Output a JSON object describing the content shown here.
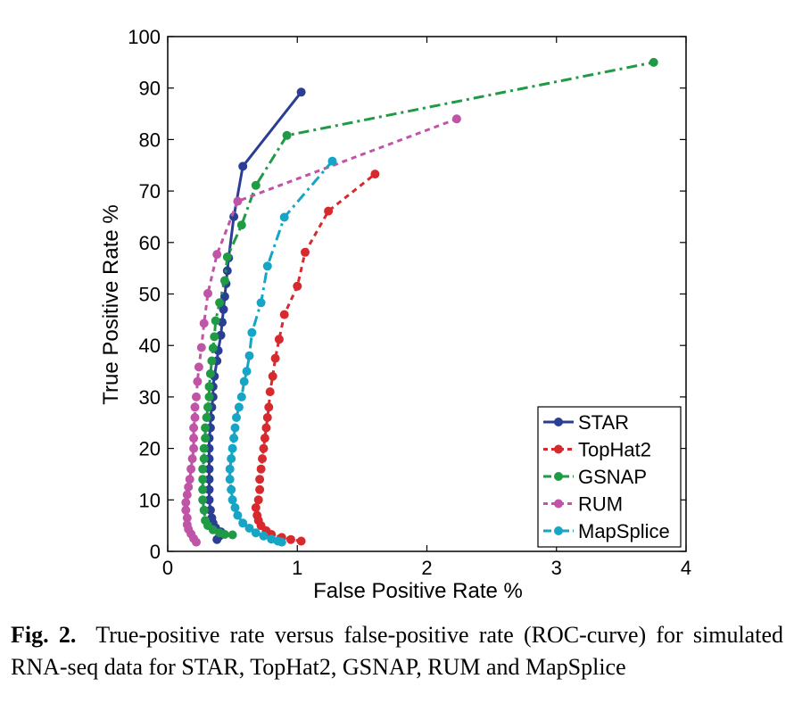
{
  "chart_data": {
    "type": "line",
    "xlabel": "False Positive Rate %",
    "ylabel": "True Positive Rate %",
    "xlim": [
      0,
      4
    ],
    "ylim": [
      0,
      100
    ],
    "xticks": [
      0,
      1,
      2,
      3,
      4
    ],
    "yticks": [
      0,
      10,
      20,
      30,
      40,
      50,
      60,
      70,
      80,
      90,
      100
    ],
    "grid": false,
    "legend_position": "bottom-right",
    "series": [
      {
        "name": "STAR",
        "color": "#2a3f93",
        "dash": "solid",
        "points": [
          [
            0.38,
            2.3
          ],
          [
            0.4,
            3.0
          ],
          [
            0.41,
            3.8
          ],
          [
            0.37,
            4.6
          ],
          [
            0.35,
            5.5
          ],
          [
            0.34,
            6.5
          ],
          [
            0.33,
            8
          ],
          [
            0.32,
            10
          ],
          [
            0.32,
            12
          ],
          [
            0.32,
            14
          ],
          [
            0.32,
            16
          ],
          [
            0.32,
            18
          ],
          [
            0.32,
            20
          ],
          [
            0.32,
            22
          ],
          [
            0.33,
            24
          ],
          [
            0.33,
            26
          ],
          [
            0.34,
            28
          ],
          [
            0.35,
            30
          ],
          [
            0.35,
            32
          ],
          [
            0.36,
            34
          ],
          [
            0.38,
            37
          ],
          [
            0.39,
            39
          ],
          [
            0.41,
            42
          ],
          [
            0.42,
            44.5
          ],
          [
            0.43,
            47
          ],
          [
            0.44,
            49.5
          ],
          [
            0.45,
            52
          ],
          [
            0.46,
            54.5
          ],
          [
            0.47,
            57
          ],
          [
            0.51,
            65
          ],
          [
            0.58,
            74.8
          ],
          [
            1.03,
            89.2
          ]
        ]
      },
      {
        "name": "TopHat2",
        "color": "#d62a2f",
        "dash": "dashed",
        "points": [
          [
            1.03,
            2.0
          ],
          [
            0.95,
            2.3
          ],
          [
            0.88,
            2.7
          ],
          [
            0.8,
            3.3
          ],
          [
            0.76,
            4.0
          ],
          [
            0.72,
            5.0
          ],
          [
            0.7,
            6.0
          ],
          [
            0.69,
            7.0
          ],
          [
            0.68,
            8.5
          ],
          [
            0.7,
            10
          ],
          [
            0.71,
            12
          ],
          [
            0.71,
            14
          ],
          [
            0.72,
            16
          ],
          [
            0.73,
            18
          ],
          [
            0.74,
            20
          ],
          [
            0.75,
            22
          ],
          [
            0.76,
            24
          ],
          [
            0.77,
            26
          ],
          [
            0.78,
            28
          ],
          [
            0.79,
            31
          ],
          [
            0.81,
            34
          ],
          [
            0.83,
            37.5
          ],
          [
            0.86,
            41.2
          ],
          [
            0.9,
            46
          ],
          [
            1.0,
            51.5
          ],
          [
            1.06,
            58.1
          ],
          [
            1.24,
            66.1
          ],
          [
            1.6,
            73.3
          ]
        ]
      },
      {
        "name": "GSNAP",
        "color": "#1f9a45",
        "dash": "dashdot",
        "points": [
          [
            0.5,
            3.2
          ],
          [
            0.44,
            3.3
          ],
          [
            0.4,
            3.6
          ],
          [
            0.35,
            4.2
          ],
          [
            0.31,
            5
          ],
          [
            0.29,
            6
          ],
          [
            0.28,
            8
          ],
          [
            0.27,
            10
          ],
          [
            0.27,
            12
          ],
          [
            0.27,
            14
          ],
          [
            0.27,
            16
          ],
          [
            0.28,
            18
          ],
          [
            0.28,
            20
          ],
          [
            0.29,
            22
          ],
          [
            0.29,
            24
          ],
          [
            0.3,
            26
          ],
          [
            0.31,
            28
          ],
          [
            0.32,
            30
          ],
          [
            0.32,
            32
          ],
          [
            0.33,
            34.5
          ],
          [
            0.34,
            37
          ],
          [
            0.35,
            39.5
          ],
          [
            0.36,
            41.7
          ],
          [
            0.37,
            44.8
          ],
          [
            0.4,
            48.3
          ],
          [
            0.44,
            52.6
          ],
          [
            0.46,
            57.2
          ],
          [
            0.57,
            63.4
          ],
          [
            0.68,
            71.1
          ],
          [
            0.92,
            80.8
          ],
          [
            3.75,
            95
          ]
        ]
      },
      {
        "name": "RUM",
        "color": "#c054a7",
        "dash": "dashed",
        "points": [
          [
            0.22,
            1.8
          ],
          [
            0.2,
            2.5
          ],
          [
            0.18,
            3.4
          ],
          [
            0.16,
            4.3
          ],
          [
            0.15,
            5.2
          ],
          [
            0.15,
            6.5
          ],
          [
            0.14,
            8
          ],
          [
            0.14,
            9.5
          ],
          [
            0.15,
            11
          ],
          [
            0.16,
            12.5
          ],
          [
            0.17,
            14
          ],
          [
            0.18,
            16
          ],
          [
            0.19,
            18
          ],
          [
            0.2,
            20
          ],
          [
            0.2,
            22
          ],
          [
            0.2,
            24
          ],
          [
            0.21,
            26
          ],
          [
            0.21,
            28
          ],
          [
            0.22,
            30
          ],
          [
            0.23,
            33
          ],
          [
            0.24,
            35.8
          ],
          [
            0.26,
            39.6
          ],
          [
            0.28,
            44.3
          ],
          [
            0.31,
            50.1
          ],
          [
            0.38,
            57.7
          ],
          [
            0.54,
            68
          ],
          [
            2.23,
            84
          ]
        ]
      },
      {
        "name": "MapSplice",
        "color": "#17a5c6",
        "dash": "dashdot",
        "points": [
          [
            0.88,
            1.8
          ],
          [
            0.85,
            2.0
          ],
          [
            0.8,
            2.4
          ],
          [
            0.74,
            3.0
          ],
          [
            0.68,
            3.6
          ],
          [
            0.63,
            4.5
          ],
          [
            0.58,
            5.5
          ],
          [
            0.54,
            7
          ],
          [
            0.52,
            8.5
          ],
          [
            0.5,
            10
          ],
          [
            0.49,
            12
          ],
          [
            0.48,
            14
          ],
          [
            0.48,
            16
          ],
          [
            0.49,
            18
          ],
          [
            0.5,
            20
          ],
          [
            0.51,
            22
          ],
          [
            0.52,
            24
          ],
          [
            0.53,
            26
          ],
          [
            0.55,
            28
          ],
          [
            0.57,
            30
          ],
          [
            0.59,
            33
          ],
          [
            0.61,
            35
          ],
          [
            0.63,
            38
          ],
          [
            0.65,
            42.5
          ],
          [
            0.72,
            48.3
          ],
          [
            0.77,
            55.4
          ],
          [
            0.9,
            64.9
          ],
          [
            1.27,
            75.8
          ]
        ]
      }
    ]
  },
  "caption": {
    "label": "Fig. 2.",
    "text": "True-positive rate versus false-positive rate (ROC-curve) for simulated RNA-seq data for STAR, TopHat2, GSNAP, RUM and MapSplice"
  }
}
